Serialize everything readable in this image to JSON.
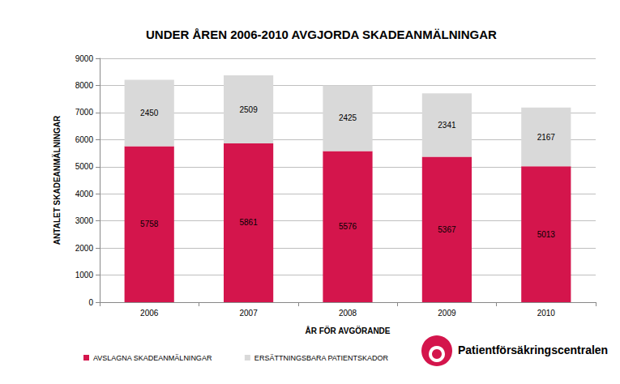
{
  "chart_data": {
    "type": "bar",
    "title": "UNDER ÅREN 2006-2010 AVGJORDA SKADEANMÄLNINGAR",
    "x_label": "ÅR FÖR AVGÖRANDE",
    "y_label": "ANTALET SKADEANMÄLNINGAR",
    "categories": [
      "2006",
      "2007",
      "2008",
      "2009",
      "2010"
    ],
    "series": [
      {
        "name": "AVSLAGNA SKADEANMÄLNINGAR",
        "color": "#d4154c",
        "values": [
          5758,
          5861,
          5576,
          5367,
          5013
        ]
      },
      {
        "name": "ERSÄTTNINGSBARA PATIENTSKADOR",
        "color": "#d9d9d9",
        "values": [
          2450,
          2509,
          2425,
          2341,
          2167
        ]
      }
    ],
    "stacked": true,
    "data_labels": true,
    "ylim": [
      0,
      9000
    ],
    "yticks": [
      0,
      1000,
      2000,
      3000,
      4000,
      5000,
      6000,
      7000,
      8000,
      9000
    ],
    "grid": true,
    "legend": "bottom left",
    "annotations": [
      "Patientförsäkringscentralen"
    ]
  }
}
